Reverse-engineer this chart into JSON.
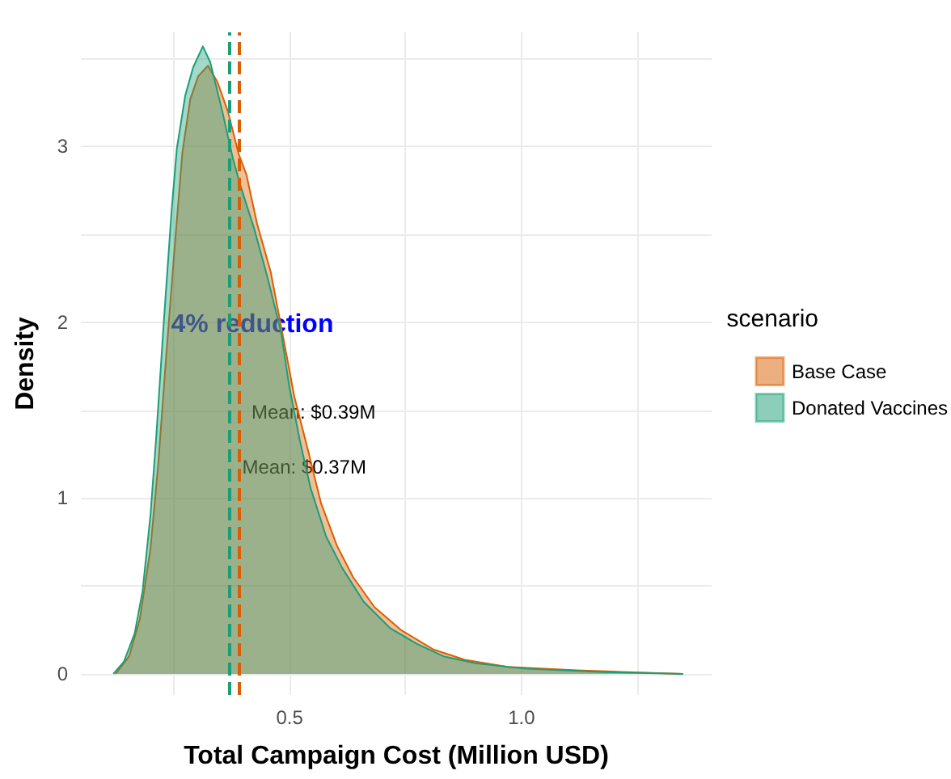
{
  "chart_data": {
    "type": "area",
    "xlabel": "Total Campaign Cost (Million USD)",
    "ylabel": "Density",
    "legend_title": "scenario",
    "legend": "right",
    "grid": true,
    "xlim": [
      0.05,
      1.41
    ],
    "ylim": [
      -0.12,
      3.65
    ],
    "xticks": [
      {
        "value": 0.25,
        "label": null
      },
      0.5,
      {
        "value": 0.75,
        "label": null
      },
      {
        "value": 1.0,
        "label": "1.0"
      },
      {
        "value": 1.25,
        "label": null
      }
    ],
    "yticks": [
      0,
      {
        "value": 0.5,
        "label": null
      },
      1,
      {
        "value": 1.5,
        "label": null
      },
      2,
      {
        "value": 2.5,
        "label": null
      },
      3,
      {
        "value": 3.5,
        "label": null
      }
    ],
    "series": [
      {
        "name": "Base Case",
        "color": "#d95f02",
        "x": [
          0.125,
          0.154,
          0.177,
          0.2,
          0.217,
          0.234,
          0.252,
          0.269,
          0.286,
          0.303,
          0.324,
          0.344,
          0.367,
          0.39,
          0.407,
          0.43,
          0.459,
          0.488,
          0.51,
          0.539,
          0.568,
          0.602,
          0.637,
          0.683,
          0.74,
          0.809,
          0.878,
          0.97,
          1.12,
          1.349
        ],
        "values": [
          0,
          0.1,
          0.31,
          0.71,
          1.2,
          1.81,
          2.42,
          2.97,
          3.27,
          3.4,
          3.46,
          3.37,
          3.2,
          2.96,
          2.84,
          2.56,
          2.29,
          1.89,
          1.58,
          1.28,
          0.97,
          0.73,
          0.55,
          0.38,
          0.25,
          0.14,
          0.08,
          0.04,
          0.02,
          0
        ]
      },
      {
        "name": "Donated Vaccines",
        "color": "#1b9e77",
        "x": [
          0.12,
          0.143,
          0.166,
          0.183,
          0.2,
          0.212,
          0.229,
          0.246,
          0.257,
          0.275,
          0.292,
          0.313,
          0.329,
          0.355,
          0.378,
          0.395,
          0.424,
          0.453,
          0.482,
          0.499,
          0.522,
          0.545,
          0.579,
          0.614,
          0.66,
          0.717,
          0.775,
          0.832,
          0.901,
          1.005,
          1.177,
          1.349
        ],
        "values": [
          0,
          0.07,
          0.23,
          0.47,
          0.9,
          1.33,
          2.01,
          2.65,
          2.99,
          3.29,
          3.45,
          3.57,
          3.48,
          3.2,
          2.93,
          2.77,
          2.53,
          2.25,
          1.94,
          1.64,
          1.33,
          1.06,
          0.78,
          0.6,
          0.41,
          0.26,
          0.17,
          0.1,
          0.06,
          0.03,
          0.01,
          0
        ]
      }
    ],
    "ref_lines": [
      {
        "axis": "x",
        "value": 0.39,
        "color": "#d95f02",
        "line_style": "dashed",
        "label": "Mean: $0.39M"
      },
      {
        "axis": "x",
        "value": 0.37,
        "color": "#1b9e77",
        "line_style": "dashed",
        "label": "Mean: $0.37M"
      }
    ],
    "annotations": [
      "4% reduction"
    ]
  }
}
